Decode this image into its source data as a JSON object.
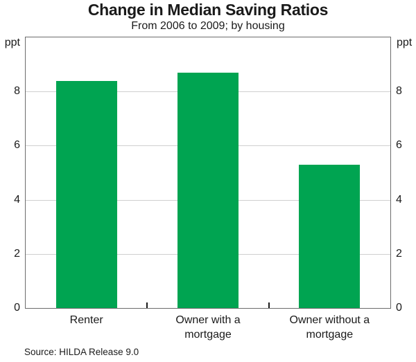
{
  "chart_data": {
    "type": "bar",
    "title": "Change in Median Saving Ratios",
    "subtitle": "From 2006 to 2009; by housing",
    "unit_left": "ppt",
    "unit_right": "ppt",
    "categories": [
      "Renter",
      "Owner with a mortgage",
      "Owner without a mortgage"
    ],
    "category_lines": [
      [
        "Renter"
      ],
      [
        "Owner with a",
        "mortgage"
      ],
      [
        "Owner without a",
        "mortgage"
      ]
    ],
    "values": [
      8.4,
      8.7,
      5.3
    ],
    "ylim": [
      0,
      10
    ],
    "yticks": [
      0,
      2,
      4,
      6,
      8
    ],
    "grid": true,
    "legend": "none",
    "bar_color": "#00A451",
    "source": "Source: HILDA Release 9.0"
  }
}
